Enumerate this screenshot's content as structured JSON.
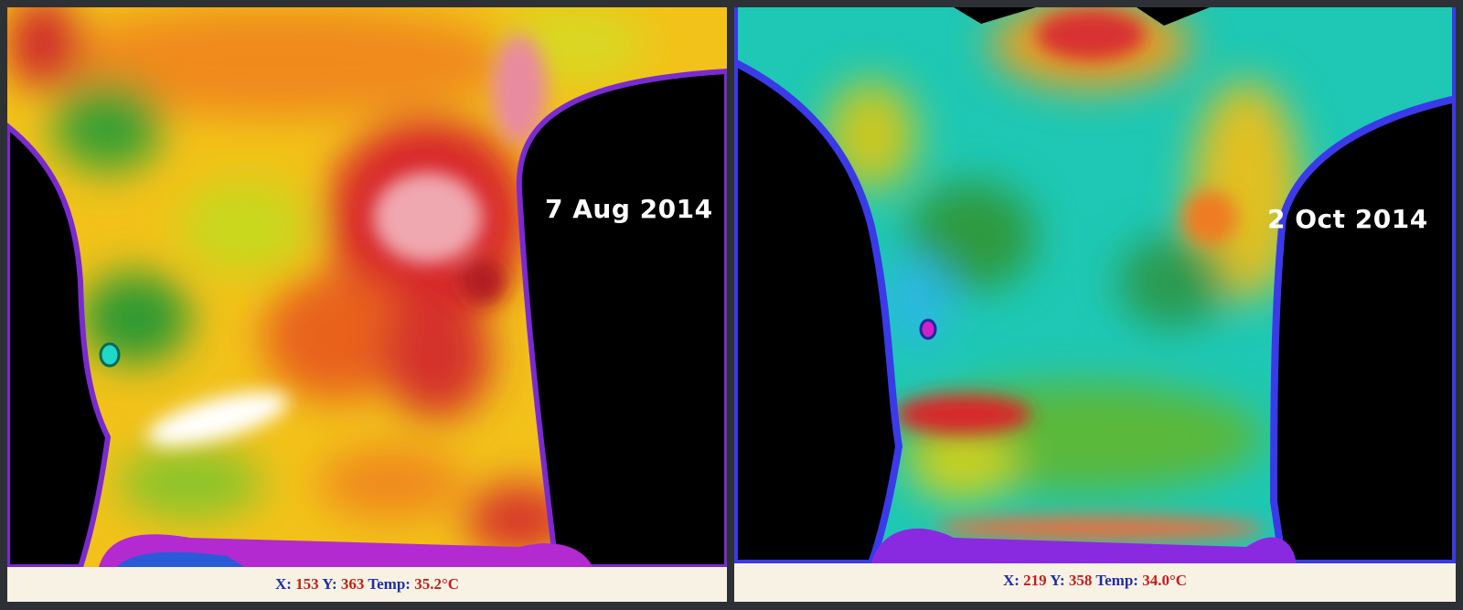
{
  "panels": [
    {
      "date": "7 Aug 2014",
      "status": {
        "x_label": "X:",
        "x": "153",
        "y_label": "Y:",
        "y": "363",
        "temp_label": "Temp:",
        "temp": "35.2°C"
      }
    },
    {
      "date": "2 Oct 2014",
      "status": {
        "x_label": "X:",
        "x": "219",
        "y_label": "Y:",
        "y": "358",
        "temp_label": "Temp:",
        "temp": "34.0°C"
      }
    }
  ]
}
